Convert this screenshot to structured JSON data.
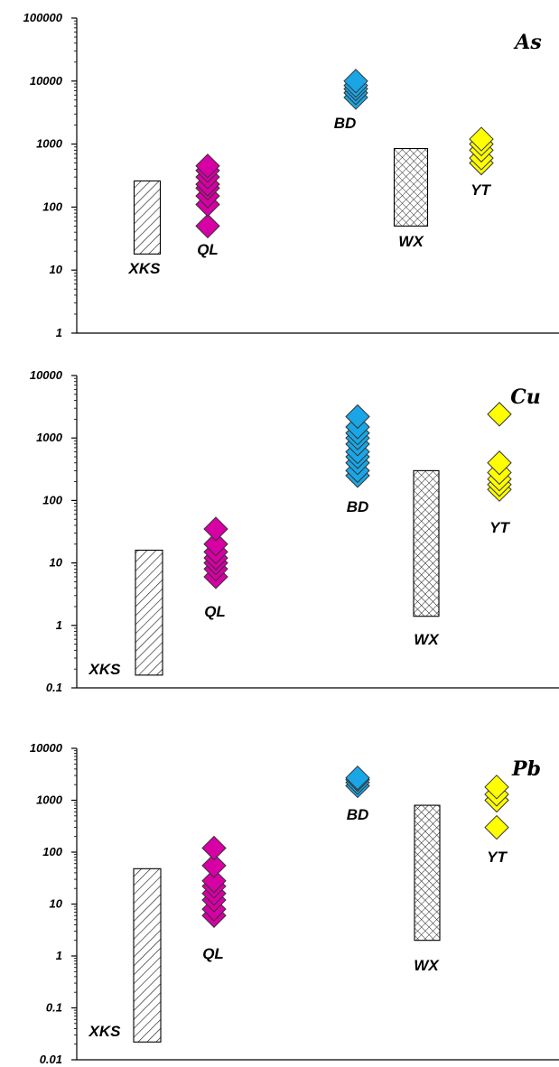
{
  "chart_data": [
    {
      "type": "scatter",
      "title": "As",
      "y_scale": "log",
      "ylim": [
        1,
        100000
      ],
      "y_ticks": [
        "1",
        "10",
        "100",
        "1000",
        "10000",
        "100000"
      ],
      "y_tick_values": [
        1,
        10,
        100,
        1000,
        10000,
        100000
      ],
      "range_bars": [
        {
          "name": "XKS",
          "min": 18,
          "max": 260,
          "pattern": "diagonal-hatch"
        },
        {
          "name": "WX",
          "min": 50,
          "max": 850,
          "pattern": "crosshatch"
        }
      ],
      "series": [
        {
          "name": "QL",
          "color": "#d600a4",
          "values": [
            50,
            110,
            150,
            200,
            230,
            300,
            380,
            450
          ]
        },
        {
          "name": "BD",
          "color": "#1aa6e6",
          "values": [
            5500,
            6500,
            7500,
            8500,
            10000
          ]
        },
        {
          "name": "YT",
          "color": "#ffff00",
          "values": [
            500,
            600,
            800,
            1000,
            1200
          ]
        }
      ]
    },
    {
      "type": "scatter",
      "title": "Cu",
      "y_scale": "log",
      "ylim": [
        0.1,
        10000
      ],
      "y_ticks": [
        "0.1",
        "1",
        "10",
        "100",
        "1000",
        "10000"
      ],
      "y_tick_values": [
        0.1,
        1,
        10,
        100,
        1000,
        10000
      ],
      "range_bars": [
        {
          "name": "XKS",
          "min": 0.16,
          "max": 16,
          "pattern": "diagonal-hatch"
        },
        {
          "name": "WX",
          "min": 1.4,
          "max": 300,
          "pattern": "crosshatch"
        }
      ],
      "series": [
        {
          "name": "QL",
          "color": "#d600a4",
          "values": [
            6,
            8,
            10,
            12,
            15,
            20,
            35
          ]
        },
        {
          "name": "BD",
          "color": "#1aa6e6",
          "values": [
            250,
            300,
            400,
            500,
            600,
            800,
            1000,
            1200,
            1500,
            2200
          ]
        },
        {
          "name": "YT",
          "color": "#ffff00",
          "values": [
            150,
            180,
            220,
            280,
            400,
            2400
          ]
        }
      ]
    },
    {
      "type": "scatter",
      "title": "Pb",
      "y_scale": "log",
      "ylim": [
        0.01,
        10000
      ],
      "y_ticks": [
        "0.01",
        "0.1",
        "1",
        "10",
        "100",
        "1000",
        "10000"
      ],
      "y_tick_values": [
        0.01,
        0.1,
        1,
        10,
        100,
        1000,
        10000
      ],
      "range_bars": [
        {
          "name": "XKS",
          "min": 0.022,
          "max": 48,
          "pattern": "diagonal-hatch"
        },
        {
          "name": "WX",
          "min": 2,
          "max": 800,
          "pattern": "crosshatch"
        }
      ],
      "series": [
        {
          "name": "QL",
          "color": "#d600a4",
          "values": [
            6,
            8,
            12,
            16,
            22,
            28,
            55,
            120
          ]
        },
        {
          "name": "BD",
          "color": "#1aa6e6",
          "values": [
            1900,
            2200,
            2500,
            2700
          ]
        },
        {
          "name": "YT",
          "color": "#ffff00",
          "values": [
            300,
            1000,
            1300,
            1800
          ]
        }
      ]
    }
  ]
}
